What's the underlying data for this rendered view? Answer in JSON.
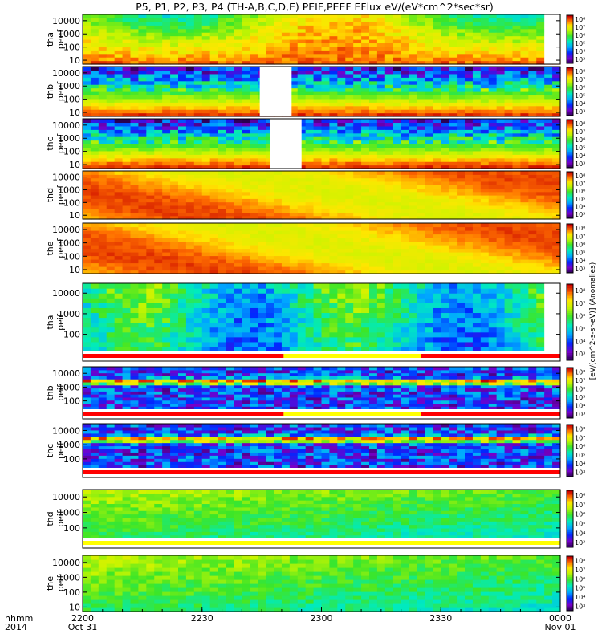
{
  "chart_data": {
    "type": "heatmap",
    "title": "P5, P1, P2, P3, P4 (TH-A,B,C,D,E) PEIF,PEEF EFlux eV/(eV*cm^2*sec*sr)",
    "x_axis": {
      "header": [
        "hhmm",
        "2014"
      ],
      "ticks": [
        {
          "t": 0,
          "label": "2200",
          "sub": "Oct 31"
        },
        {
          "t": 30,
          "label": "2230",
          "sub": ""
        },
        {
          "t": 60,
          "label": "2300",
          "sub": ""
        },
        {
          "t": 90,
          "label": "2330",
          "sub": ""
        },
        {
          "t": 120,
          "label": "0000",
          "sub": "Nov 01"
        }
      ],
      "range_minutes": [
        0,
        120
      ]
    },
    "y_axis": {
      "scale": "log",
      "unit": "eV",
      "range": [
        5,
        30000
      ],
      "tick_labels": [
        "10",
        "100",
        "1000",
        "10000"
      ],
      "tick_values": [
        10,
        100,
        1000,
        10000
      ]
    },
    "colorbar": {
      "label": "[eV/(cm^2-s-sr-eV)] (Anomalies)",
      "scale": "log",
      "range": [
        1000,
        100000000
      ],
      "tick_labels": [
        "10³",
        "10⁴",
        "10⁵",
        "10⁶",
        "10⁷",
        "10⁸"
      ]
    },
    "panels": [
      {
        "line1": "tha",
        "line2": "peef",
        "species": "electron",
        "probe": "A",
        "gaps": [
          [
            116,
            120
          ]
        ],
        "bottom_strip": null
      },
      {
        "line1": "thb",
        "line2": "peef",
        "species": "electron",
        "probe": "B",
        "gaps": [
          [
            44.5,
            52.5
          ]
        ],
        "bottom_strip": null
      },
      {
        "line1": "thc",
        "line2": "peef",
        "species": "electron",
        "probe": "C",
        "gaps": [
          [
            47,
            55
          ]
        ],
        "bottom_strip": null
      },
      {
        "line1": "thd",
        "line2": "peef",
        "species": "electron",
        "probe": "D",
        "gaps": [],
        "bottom_strip": null
      },
      {
        "line1": "the",
        "line2": "peef",
        "species": "electron",
        "probe": "E",
        "gaps": [],
        "bottom_strip": null
      },
      {
        "line1": "tha",
        "line2": "peif",
        "species": "ion",
        "probe": "A",
        "gaps": [
          [
            116,
            120
          ]
        ],
        "bottom_strip": [
          [
            "#ff0000",
            0,
            50.5
          ],
          [
            "#ffff00",
            50.5,
            85
          ],
          [
            "#ff0000",
            85,
            120
          ]
        ]
      },
      {
        "line1": "thb",
        "line2": "peif",
        "species": "ion",
        "probe": "B",
        "gaps": [],
        "bottom_strip": [
          [
            "#ff0000",
            0,
            50.5
          ],
          [
            "#ffff00",
            50.5,
            85
          ],
          [
            "#ff0000",
            85,
            120
          ]
        ]
      },
      {
        "line1": "thc",
        "line2": "peif",
        "species": "ion",
        "probe": "C",
        "gaps": [],
        "bottom_strip": [
          [
            "#ff0000",
            0,
            120
          ]
        ]
      },
      {
        "line1": "thd",
        "line2": "peif",
        "species": "ion",
        "probe": "D",
        "gaps": [],
        "bottom_strip": [
          [
            "#ffff00",
            0,
            120
          ]
        ]
      },
      {
        "line1": "the",
        "line2": "peif",
        "species": "ion",
        "probe": "E",
        "gaps": [],
        "bottom_strip": null
      }
    ]
  }
}
